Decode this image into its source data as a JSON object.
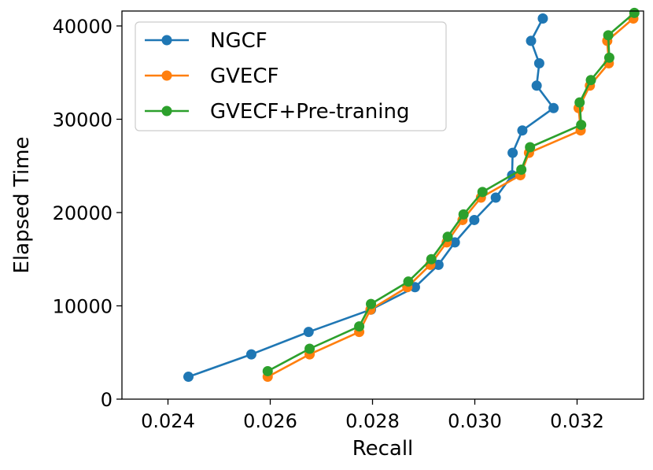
{
  "chart_data": {
    "type": "line",
    "title": "",
    "xlabel": "Recall",
    "ylabel": "Elapsed Time",
    "xlim": [
      0.0231,
      0.0333
    ],
    "ylim": [
      0,
      41600
    ],
    "xticks": [
      0.024,
      0.026,
      0.028,
      0.03,
      0.032
    ],
    "xtick_labels": [
      "0.024",
      "0.026",
      "0.028",
      "0.030",
      "0.032"
    ],
    "yticks": [
      0,
      10000,
      20000,
      30000,
      40000
    ],
    "ytick_labels": [
      "0",
      "10000",
      "20000",
      "30000",
      "40000"
    ],
    "legend_position": "top-left",
    "series": [
      {
        "name": "NGCF",
        "color": "#1f77b4",
        "x": [
          0.0244,
          0.02563,
          0.02675,
          0.02797,
          0.02883,
          0.02929,
          0.02961,
          0.02999,
          0.03041,
          0.03073,
          0.03074,
          0.03093,
          0.03154,
          0.03121,
          0.03126,
          0.0311,
          0.03133
        ],
        "y": [
          2400,
          4800,
          7200,
          9600,
          12000,
          14400,
          16800,
          19200,
          21600,
          24000,
          26400,
          28800,
          31200,
          33600,
          36000,
          38400,
          40800
        ]
      },
      {
        "name": "GVECF",
        "color": "#ff7f0e",
        "x": [
          0.02595,
          0.02677,
          0.02774,
          0.02796,
          0.02868,
          0.02913,
          0.02945,
          0.02976,
          0.03012,
          0.03089,
          0.03106,
          0.03207,
          0.03203,
          0.03225,
          0.03262,
          0.03259,
          0.0331
        ],
        "y": [
          2400,
          4800,
          7200,
          9600,
          12000,
          14400,
          16800,
          19200,
          21600,
          24000,
          26400,
          28800,
          31200,
          33600,
          36000,
          38400,
          40800
        ]
      },
      {
        "name": "GVECF+Pre-traning",
        "color": "#2ca02c",
        "x": [
          0.02595,
          0.02677,
          0.02774,
          0.02797,
          0.0287,
          0.02915,
          0.02947,
          0.02978,
          0.03015,
          0.03091,
          0.03108,
          0.03208,
          0.03205,
          0.03227,
          0.03263,
          0.03261,
          0.03312
        ],
        "y": [
          3000,
          5400,
          7800,
          10200,
          12600,
          15000,
          17400,
          19800,
          22200,
          24600,
          27000,
          29400,
          31800,
          34200,
          36600,
          39000,
          41400
        ]
      }
    ]
  }
}
